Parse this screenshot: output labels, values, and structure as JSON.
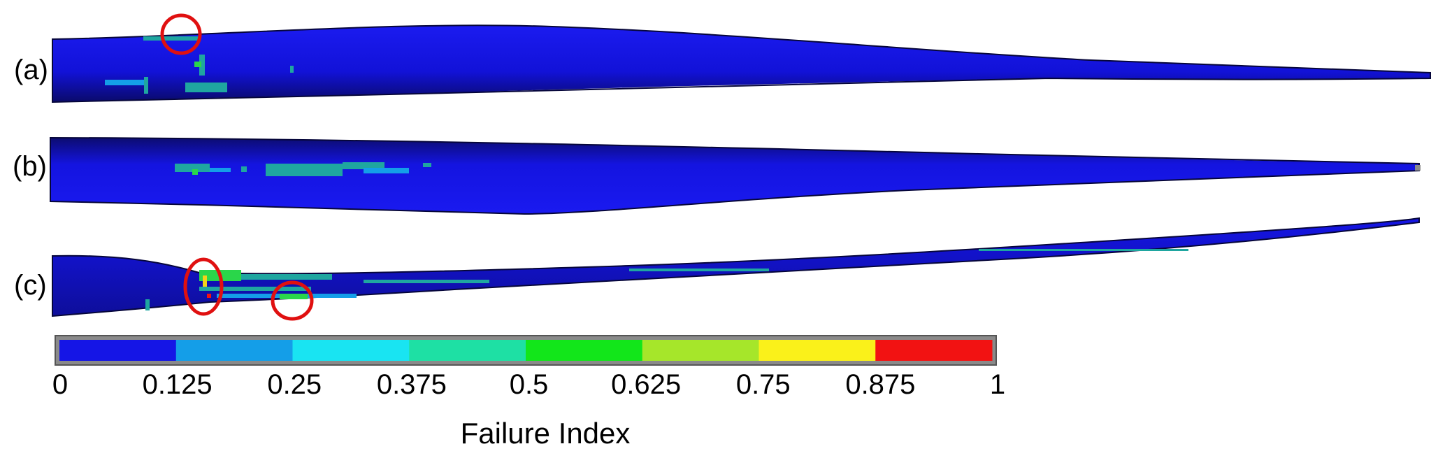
{
  "panels": [
    {
      "id": "a",
      "label": "(a)"
    },
    {
      "id": "b",
      "label": "(b)"
    },
    {
      "id": "c",
      "label": "(c)"
    }
  ],
  "colorbar": {
    "title": "Failure Index",
    "ticks": [
      "0",
      "0.125",
      "0.25",
      "0.375",
      "0.5",
      "0.625",
      "0.75",
      "0.875",
      "1"
    ],
    "colors": [
      "#1515e6",
      "#149ee8",
      "#19e4f2",
      "#1ee0a4",
      "#12e61a",
      "#a6e62a",
      "#faf11a",
      "#f21212"
    ],
    "frame_color": "#8a8a8a"
  },
  "blade_colors": {
    "base": "#1414e0",
    "edge": "#0a0a50",
    "low_hotspot": "#1fa6a0",
    "mid_hotspot": "#2ad64a",
    "high_hotspot": "#f2d21a",
    "highlight_circle": "#e01010"
  }
}
